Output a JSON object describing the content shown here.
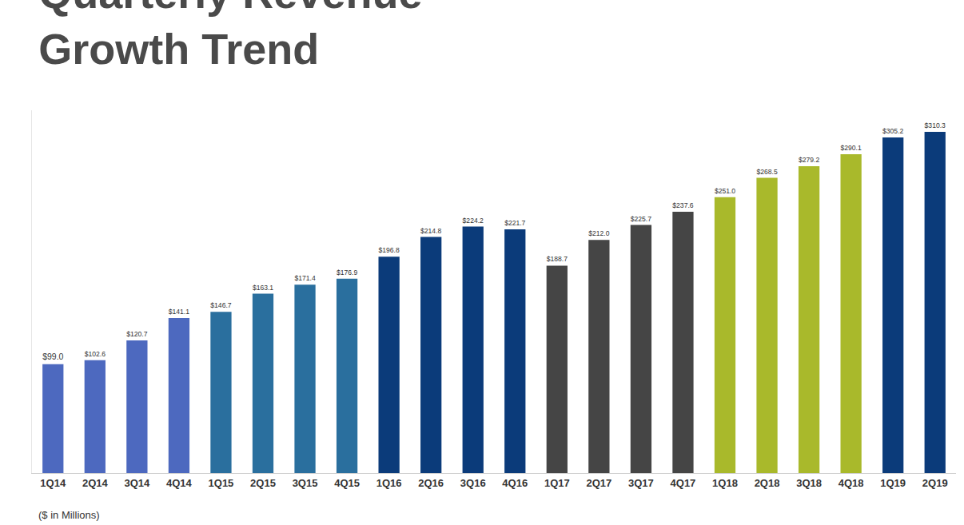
{
  "chart_data": {
    "type": "bar",
    "title": "Quarterly Revenue\nGrowth Trend",
    "subtitle": "($ in Millions)",
    "categories": [
      "1Q14",
      "2Q14",
      "3Q14",
      "4Q14",
      "1Q15",
      "2Q15",
      "3Q15",
      "4Q15",
      "1Q16",
      "2Q16",
      "3Q16",
      "4Q16",
      "1Q17",
      "2Q17",
      "3Q17",
      "4Q17",
      "1Q18",
      "2Q18",
      "3Q18",
      "4Q18",
      "1Q19",
      "2Q19"
    ],
    "values": [
      99.0,
      102.6,
      120.7,
      141.1,
      146.7,
      163.1,
      171.4,
      176.9,
      196.8,
      214.8,
      224.2,
      221.7,
      188.7,
      212.0,
      225.7,
      237.6,
      251.0,
      268.5,
      279.2,
      290.1,
      305.2,
      310.3
    ],
    "value_labels": [
      "$99.0",
      "$102.6",
      "$120.7",
      "$141.1",
      "$146.7",
      "$163.1",
      "$171.4",
      "$176.9",
      "$196.8",
      "$214.8",
      "$224.2",
      "$221.7",
      "$188.7",
      "$212.0",
      "$225.7",
      "$237.6",
      "$251.0",
      "$268.5",
      "$279.2",
      "$290.1",
      "$305.2",
      "$310.3"
    ],
    "colors": [
      "#4d69bf",
      "#4d69bf",
      "#4d69bf",
      "#4d69bf",
      "#2a6f9e",
      "#2a6f9e",
      "#2a6f9e",
      "#2a6f9e",
      "#0b3b7a",
      "#0b3b7a",
      "#0b3b7a",
      "#0b3b7a",
      "#454545",
      "#454545",
      "#454545",
      "#454545",
      "#a9b92b",
      "#a9b92b",
      "#a9b92b",
      "#a9b92b",
      "#0b3b7a",
      "#0b3b7a"
    ],
    "ylim": [
      0,
      330
    ],
    "data_labels": true,
    "tick_labels": "x",
    "grid": false
  }
}
